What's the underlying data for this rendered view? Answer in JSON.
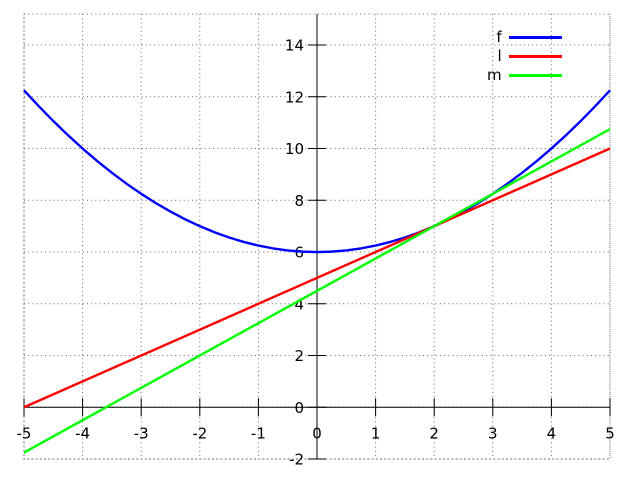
{
  "chart_data": {
    "type": "line",
    "title": "",
    "xlabel": "",
    "ylabel": "",
    "xlim": [
      -5,
      5
    ],
    "ylim": [
      -2,
      15.2
    ],
    "xticks": [
      -5,
      -4,
      -3,
      -2,
      -1,
      0,
      1,
      2,
      3,
      4,
      5
    ],
    "yticks": [
      -2,
      0,
      2,
      4,
      6,
      8,
      10,
      12,
      14
    ],
    "grid": "dotted",
    "grid_color": "#666666",
    "axis_color": "#000000",
    "background": "#ffffff",
    "axes_through_origin": true,
    "legend_position": "top-right-inside",
    "legend": [
      {
        "label": "f",
        "color": "#0000ff"
      },
      {
        "label": "l",
        "color": "#ff0000"
      },
      {
        "label": "m",
        "color": "#00ff00"
      }
    ],
    "series": [
      {
        "name": "f",
        "color": "#0000ff",
        "x": [
          -5,
          -4.75,
          -4.5,
          -4.25,
          -4,
          -3.75,
          -3.5,
          -3.25,
          -3,
          -2.75,
          -2.5,
          -2.25,
          -2,
          -1.75,
          -1.5,
          -1.25,
          -1,
          -0.75,
          -0.5,
          -0.25,
          0,
          0.25,
          0.5,
          0.75,
          1,
          1.25,
          1.5,
          1.75,
          2,
          2.25,
          2.5,
          2.75,
          3,
          3.25,
          3.5,
          3.75,
          4,
          4.25,
          4.5,
          4.75,
          5
        ],
        "y": [
          12.25,
          11.640625,
          11.0625,
          10.515625,
          10,
          9.515625,
          9.0625,
          8.640625,
          8.25,
          7.890625,
          7.5625,
          7.265625,
          7,
          6.765625,
          6.5625,
          6.390625,
          6.25,
          6.140625,
          6.0625,
          6.015625,
          6,
          6.015625,
          6.0625,
          6.140625,
          6.25,
          6.390625,
          6.5625,
          6.765625,
          7,
          7.265625,
          7.5625,
          7.890625,
          8.25,
          8.640625,
          9.0625,
          9.515625,
          10,
          10.515625,
          11.0625,
          11.640625,
          12.25
        ]
      },
      {
        "name": "l",
        "color": "#ff0000",
        "x": [
          -5,
          5
        ],
        "y": [
          0,
          10
        ]
      },
      {
        "name": "m",
        "color": "#00ff00",
        "x": [
          -5,
          5
        ],
        "y": [
          -1.75,
          10.75
        ]
      }
    ]
  }
}
